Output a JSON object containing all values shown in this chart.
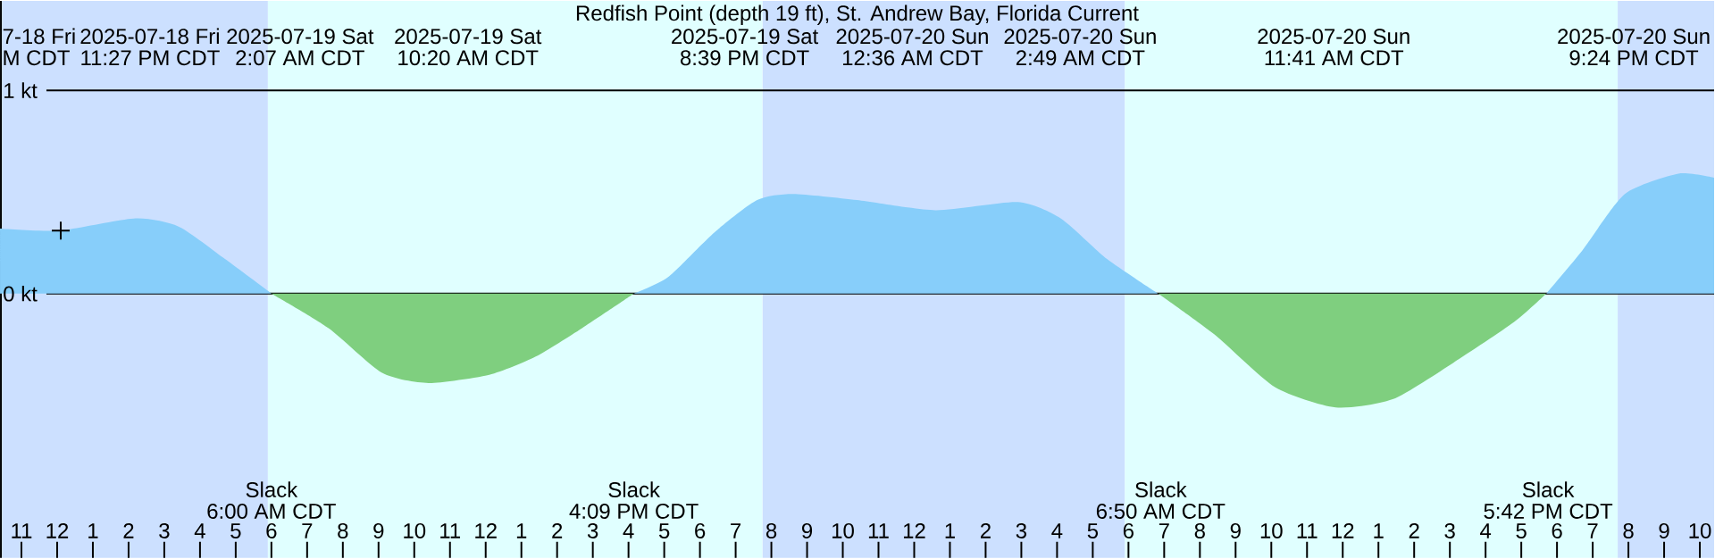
{
  "chart_data": {
    "type": "area",
    "title": "Redfish Point (depth 19 ft), St. Andrew Bay, Florida Current",
    "xlim": [
      "2025-07-18T22:24",
      "2025-07-20T22:24"
    ],
    "xticks": [
      {
        "value": "2025-07-18T23:00",
        "label": "11"
      },
      {
        "value": "2025-07-19T00:00",
        "label": "12"
      },
      {
        "value": "2025-07-19T01:00",
        "label": "1"
      },
      {
        "value": "2025-07-19T02:00",
        "label": "2"
      },
      {
        "value": "2025-07-19T03:00",
        "label": "3"
      },
      {
        "value": "2025-07-19T04:00",
        "label": "4"
      },
      {
        "value": "2025-07-19T05:00",
        "label": "5"
      },
      {
        "value": "2025-07-19T06:00",
        "label": "6"
      },
      {
        "value": "2025-07-19T07:00",
        "label": "7"
      },
      {
        "value": "2025-07-19T08:00",
        "label": "8"
      },
      {
        "value": "2025-07-19T09:00",
        "label": "9"
      },
      {
        "value": "2025-07-19T10:00",
        "label": "10"
      },
      {
        "value": "2025-07-19T11:00",
        "label": "11"
      },
      {
        "value": "2025-07-19T12:00",
        "label": "12"
      },
      {
        "value": "2025-07-19T13:00",
        "label": "1"
      },
      {
        "value": "2025-07-19T14:00",
        "label": "2"
      },
      {
        "value": "2025-07-19T15:00",
        "label": "3"
      },
      {
        "value": "2025-07-19T16:00",
        "label": "4"
      },
      {
        "value": "2025-07-19T17:00",
        "label": "5"
      },
      {
        "value": "2025-07-19T18:00",
        "label": "6"
      },
      {
        "value": "2025-07-19T19:00",
        "label": "7"
      },
      {
        "value": "2025-07-19T20:00",
        "label": "8"
      },
      {
        "value": "2025-07-19T21:00",
        "label": "9"
      },
      {
        "value": "2025-07-19T22:00",
        "label": "10"
      },
      {
        "value": "2025-07-19T23:00",
        "label": "11"
      },
      {
        "value": "2025-07-20T00:00",
        "label": "12"
      },
      {
        "value": "2025-07-20T01:00",
        "label": "1"
      },
      {
        "value": "2025-07-20T02:00",
        "label": "2"
      },
      {
        "value": "2025-07-20T03:00",
        "label": "3"
      },
      {
        "value": "2025-07-20T04:00",
        "label": "4"
      },
      {
        "value": "2025-07-20T05:00",
        "label": "5"
      },
      {
        "value": "2025-07-20T06:00",
        "label": "6"
      },
      {
        "value": "2025-07-20T07:00",
        "label": "7"
      },
      {
        "value": "2025-07-20T08:00",
        "label": "8"
      },
      {
        "value": "2025-07-20T09:00",
        "label": "9"
      },
      {
        "value": "2025-07-20T10:00",
        "label": "10"
      },
      {
        "value": "2025-07-20T11:00",
        "label": "11"
      },
      {
        "value": "2025-07-20T12:00",
        "label": "12"
      },
      {
        "value": "2025-07-20T13:00",
        "label": "1"
      },
      {
        "value": "2025-07-20T14:00",
        "label": "2"
      },
      {
        "value": "2025-07-20T15:00",
        "label": "3"
      },
      {
        "value": "2025-07-20T16:00",
        "label": "4"
      },
      {
        "value": "2025-07-20T17:00",
        "label": "5"
      },
      {
        "value": "2025-07-20T18:00",
        "label": "6"
      },
      {
        "value": "2025-07-20T19:00",
        "label": "7"
      },
      {
        "value": "2025-07-20T20:00",
        "label": "8"
      },
      {
        "value": "2025-07-20T21:00",
        "label": "9"
      },
      {
        "value": "2025-07-20T22:00",
        "label": "10"
      }
    ],
    "ylim": [
      -1.3,
      1.44
    ],
    "yticks": [
      {
        "value": 0,
        "label": "0 kt"
      },
      {
        "value": 1,
        "label": "1 kt"
      }
    ],
    "grid": "y",
    "bands": [
      {
        "axis": "x",
        "from": "2025-07-18T22:24",
        "to": "2025-07-19T05:54",
        "color": "#cce0ff"
      },
      {
        "axis": "x",
        "from": "2025-07-19T05:54",
        "to": "2025-07-19T19:45",
        "color": "#e0ffff"
      },
      {
        "axis": "x",
        "from": "2025-07-19T19:45",
        "to": "2025-07-20T05:54",
        "color": "#cce0ff"
      },
      {
        "axis": "x",
        "from": "2025-07-20T05:54",
        "to": "2025-07-20T19:42",
        "color": "#e0ffff"
      },
      {
        "axis": "x",
        "from": "2025-07-20T19:42",
        "to": "2025-07-20T22:24",
        "color": "#cce0ff"
      }
    ],
    "series": [
      {
        "color": "#87cefa",
        "x": [
          "2025-07-18T22:24",
          "2025-07-19T00:04",
          "2025-07-19T02:12",
          "2025-07-19T03:24",
          "2025-07-19T04:42",
          "2025-07-19T06:00"
        ],
        "values": [
          0.32,
          0.31,
          0.37,
          0.33,
          0.17,
          0
        ]
      },
      {
        "color": "#7fcf7f",
        "x": [
          "2025-07-19T06:00",
          "2025-07-19T07:36",
          "2025-07-19T09:06",
          "2025-07-19T10:24",
          "2025-07-19T12:06",
          "2025-07-19T13:24",
          "2025-07-19T14:42",
          "2025-07-19T16:09"
        ],
        "values": [
          0,
          -0.17,
          -0.39,
          -0.44,
          -0.4,
          -0.31,
          -0.17,
          0
        ]
      },
      {
        "color": "#87cefa",
        "x": [
          "2025-07-19T16:09",
          "2025-07-19T17:06",
          "2025-07-19T18:24",
          "2025-07-19T19:36",
          "2025-07-19T20:36",
          "2025-07-19T22:24",
          "2025-07-20T00:36",
          "2025-07-20T02:54",
          "2025-07-20T04:06",
          "2025-07-20T05:24",
          "2025-07-20T06:50"
        ],
        "values": [
          0,
          0.08,
          0.3,
          0.46,
          0.49,
          0.46,
          0.41,
          0.45,
          0.37,
          0.17,
          0
        ]
      },
      {
        "color": "#7fcf7f",
        "x": [
          "2025-07-20T06:50",
          "2025-07-20T08:24",
          "2025-07-20T10:06",
          "2025-07-20T11:48",
          "2025-07-20T13:24",
          "2025-07-20T15:06",
          "2025-07-20T16:48",
          "2025-07-20T17:42"
        ],
        "values": [
          0,
          -0.2,
          -0.46,
          -0.56,
          -0.52,
          -0.34,
          -0.14,
          0
        ]
      },
      {
        "color": "#87cefa",
        "x": [
          "2025-07-20T17:42",
          "2025-07-20T18:42",
          "2025-07-20T19:54",
          "2025-07-20T21:24",
          "2025-07-20T22:24"
        ],
        "values": [
          0,
          0.21,
          0.49,
          0.59,
          0.57
        ]
      },
      {
        "type": "scatter",
        "marker": "cross",
        "color": "#000000",
        "x": [
          "2025-07-19T00:06"
        ],
        "values": [
          0.31
        ]
      }
    ],
    "annotations": [
      "7-18 Fri",
      "M CDT",
      "2025-07-18 Fri",
      "11:27 PM CDT",
      "2025-07-19 Sat",
      "2:07 AM CDT",
      "2025-07-19 Sat",
      "10:20 AM CDT",
      "2025-07-19 Sat",
      "8:39 PM CDT",
      "2025-07-20 Sun",
      "12:36 AM CDT",
      "2025-07-20 Sun",
      "2:49 AM CDT",
      "2025-07-20 Sun",
      "11:41 AM CDT",
      "2025-07-20 Sun",
      "9:24 PM CDT",
      "Slack",
      "6:00 AM CDT",
      "Slack",
      "4:09 PM CDT",
      "Slack",
      "6:50 AM CDT",
      "Slack",
      "5:42 PM CDT"
    ]
  }
}
